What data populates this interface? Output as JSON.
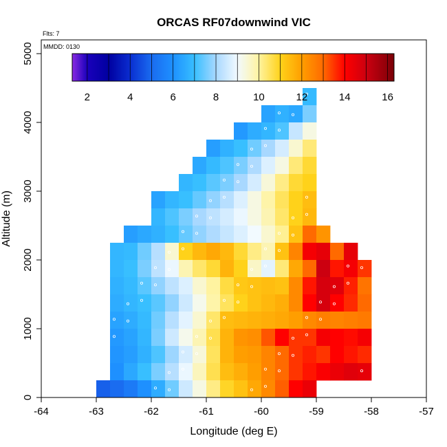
{
  "chart_data": {
    "type": "heatmap",
    "title": "ORCAS RF07downwind VIC",
    "annotations": {
      "flights": "Flts: 7",
      "date": "MMDD: 0130"
    },
    "xlabel": "Longitude (deg E)",
    "ylabel": "Altitude (m)",
    "xlim": [
      -64,
      -57
    ],
    "ylim": [
      0,
      5200
    ],
    "xticks": [
      -64,
      -63,
      -62,
      -61,
      -60,
      -59,
      -58,
      -57
    ],
    "yticks": [
      0,
      1000,
      2000,
      3000,
      4000,
      5000
    ],
    "colorbar": {
      "range": [
        1.3,
        16.3
      ],
      "ticks": [
        2,
        4,
        6,
        8,
        10,
        12,
        14,
        16
      ],
      "stops": [
        {
          "v": 1.3,
          "c": "#8a2be2"
        },
        {
          "v": 2.0,
          "c": "#1a00bb"
        },
        {
          "v": 3.0,
          "c": "#0000a0"
        },
        {
          "v": 4.0,
          "c": "#0a2ed0"
        },
        {
          "v": 5.0,
          "c": "#1a6cf0"
        },
        {
          "v": 6.0,
          "c": "#1e90ff"
        },
        {
          "v": 7.0,
          "c": "#38bfff"
        },
        {
          "v": 8.0,
          "c": "#a8d8ff"
        },
        {
          "v": 9.0,
          "c": "#f2faff"
        },
        {
          "v": 10.0,
          "c": "#fff3a0"
        },
        {
          "v": 11.0,
          "c": "#ffd21a"
        },
        {
          "v": 12.0,
          "c": "#ff9e00"
        },
        {
          "v": 13.0,
          "c": "#ff6a00"
        },
        {
          "v": 14.0,
          "c": "#ff0000"
        },
        {
          "v": 15.0,
          "c": "#cc0010"
        },
        {
          "v": 16.3,
          "c": "#7a0008"
        }
      ]
    },
    "grid": {
      "x0": -63.0,
      "dx": 0.25,
      "y0": 250,
      "dy": 250
    },
    "rows": [
      [
        null,
        null,
        null,
        null,
        null,
        null,
        null,
        null,
        null,
        null,
        null,
        null,
        null,
        null,
        null,
        6.9
      ],
      [
        null,
        null,
        null,
        null,
        null,
        null,
        null,
        null,
        null,
        null,
        null,
        null,
        6.4,
        6.7,
        6.5,
        7.6
      ],
      [
        null,
        null,
        null,
        null,
        null,
        null,
        null,
        null,
        null,
        null,
        6.2,
        6.6,
        6.8,
        7.2,
        8.4,
        9.3
      ],
      [
        null,
        null,
        null,
        null,
        null,
        null,
        null,
        null,
        6.3,
        6.7,
        7.0,
        7.5,
        8.0,
        8.6,
        9.5,
        10.3
      ],
      [
        null,
        null,
        null,
        null,
        null,
        null,
        null,
        6.5,
        6.9,
        7.2,
        7.6,
        8.1,
        8.7,
        9.3,
        10.3,
        10.8
      ],
      [
        null,
        null,
        null,
        null,
        null,
        null,
        6.8,
        7.0,
        7.3,
        7.6,
        8.0,
        8.6,
        9.4,
        10.2,
        10.8,
        11.0
      ],
      [
        null,
        null,
        null,
        null,
        6.4,
        6.8,
        7.0,
        7.4,
        7.8,
        8.2,
        8.7,
        9.3,
        9.9,
        10.5,
        11.0,
        11.4
      ],
      [
        null,
        null,
        null,
        null,
        6.8,
        7.2,
        7.6,
        8.0,
        8.3,
        8.6,
        8.9,
        9.3,
        9.8,
        10.4,
        11.0,
        11.5
      ],
      [
        null,
        null,
        6.3,
        6.5,
        6.7,
        7.0,
        7.4,
        7.8,
        8.1,
        8.4,
        8.7,
        9.0,
        9.5,
        10.1,
        11.3,
        13.0,
        12.2
      ],
      [
        null,
        6.8,
        6.9,
        7.5,
        8.2,
        9.5,
        11.0,
        11.5,
        11.8,
        11.5,
        10.8,
        10.2,
        9.8,
        11.3,
        12.5,
        14.2,
        14.5,
        13.0,
        14.5
      ],
      [
        null,
        6.8,
        7.0,
        7.6,
        8.3,
        8.9,
        9.8,
        10.4,
        10.8,
        11.6,
        11.0,
        9.6,
        8.8,
        10.3,
        11.8,
        13.0,
        15.0,
        13.8,
        14.2,
        13.5
      ],
      [
        null,
        6.7,
        6.9,
        7.3,
        7.8,
        8.3,
        8.7,
        9.5,
        10.0,
        10.7,
        11.2,
        11.3,
        11.4,
        11.3,
        12.4,
        13.8,
        14.8,
        14.6,
        13.7,
        12.8
      ],
      [
        null,
        6.6,
        6.8,
        7.0,
        7.3,
        7.8,
        8.5,
        9.2,
        9.9,
        10.5,
        11.0,
        11.3,
        11.5,
        11.7,
        12.4,
        14.0,
        14.8,
        14.0,
        13.6,
        13.0
      ],
      [
        null,
        6.4,
        6.6,
        6.9,
        7.5,
        8.2,
        8.8,
        9.5,
        10.4,
        11.4,
        11.5,
        11.6,
        11.7,
        11.8,
        12.0,
        12.4,
        12.6,
        12.5,
        12.6,
        12.7
      ],
      [
        null,
        6.2,
        6.4,
        6.8,
        7.6,
        8.5,
        9.2,
        9.8,
        10.6,
        11.6,
        12.2,
        12.3,
        13.2,
        14.0,
        13.5,
        13.5,
        14.2,
        14.0,
        13.9,
        14.2
      ],
      [
        null,
        6.1,
        6.3,
        6.7,
        7.2,
        7.9,
        8.6,
        9.4,
        10.5,
        11.6,
        12.0,
        12.1,
        12.5,
        13.0,
        13.5,
        13.7,
        13.5,
        14.0,
        13.8,
        13.6
      ],
      [
        null,
        6.0,
        6.5,
        7.0,
        7.6,
        8.2,
        8.9,
        9.7,
        10.6,
        11.4,
        11.7,
        12.0,
        12.5,
        13.0,
        13.5,
        13.8,
        14.1,
        14.4,
        14.6,
        14.5
      ],
      [
        4.8,
        5.0,
        5.4,
        6.0,
        6.6,
        7.5,
        8.5,
        9.3,
        10.2,
        10.9,
        11.3,
        11.8,
        12.4,
        13.1,
        14.0,
        14.4
      ]
    ]
  }
}
